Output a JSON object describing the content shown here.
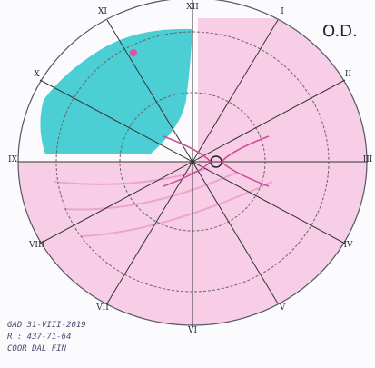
{
  "header": {
    "eye": "O.D."
  },
  "clock_labels": [
    "I",
    "II",
    "III",
    "IV",
    "V",
    "VI",
    "VII",
    "VIII",
    "IX",
    "X",
    "XI",
    "XII"
  ],
  "notes": [
    "GAD 31-VIII-2019",
    "R : 437-71-64",
    "COOR DAL FIN"
  ]
}
